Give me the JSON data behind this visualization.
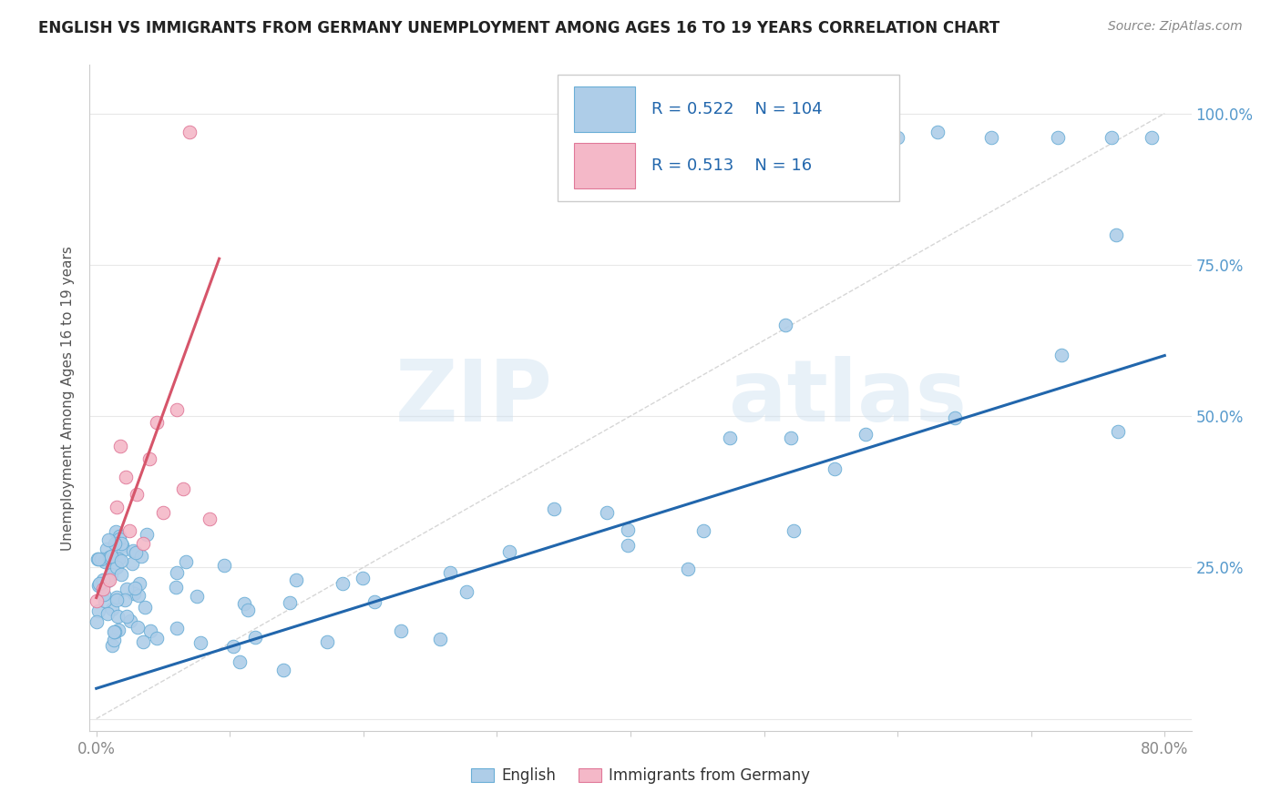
{
  "title": "ENGLISH VS IMMIGRANTS FROM GERMANY UNEMPLOYMENT AMONG AGES 16 TO 19 YEARS CORRELATION CHART",
  "source_text": "Source: ZipAtlas.com",
  "ylabel": "Unemployment Among Ages 16 to 19 years",
  "xlim": [
    -0.005,
    0.82
  ],
  "ylim": [
    -0.02,
    1.08
  ],
  "xtick_positions": [
    0.0,
    0.1,
    0.2,
    0.3,
    0.4,
    0.5,
    0.6,
    0.7,
    0.8
  ],
  "xticklabels": [
    "0.0%",
    "",
    "",
    "",
    "",
    "",
    "",
    "",
    "80.0%"
  ],
  "ytick_positions": [
    0.0,
    0.25,
    0.5,
    0.75,
    1.0
  ],
  "ytick_labels": [
    "",
    "25.0%",
    "50.0%",
    "75.0%",
    "100.0%"
  ],
  "english_color": "#aecde8",
  "english_edge_color": "#6aaed6",
  "immigrant_color": "#f4b8c8",
  "immigrant_edge_color": "#e07898",
  "line_english_color": "#2166ac",
  "line_immigrant_color": "#d6556a",
  "diagonal_color": "#cccccc",
  "R_english": 0.522,
  "N_english": 104,
  "R_immigrant": 0.513,
  "N_immigrant": 16,
  "watermark_zip": "ZIP",
  "watermark_atlas": "atlas",
  "legend_R_color": "#2166ac",
  "legend_N_color": "#d63a3a",
  "grid_color": "#e8e8e8",
  "title_color": "#222222",
  "source_color": "#888888",
  "ylabel_color": "#555555",
  "tick_label_color": "#888888",
  "right_tick_color": "#5599cc"
}
